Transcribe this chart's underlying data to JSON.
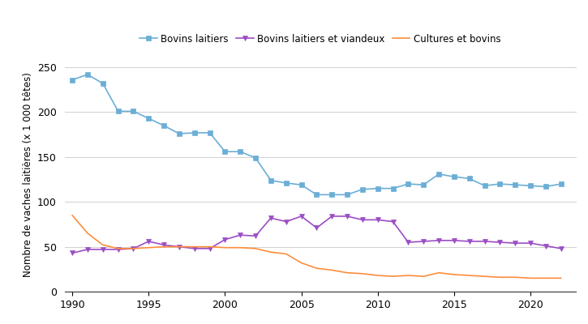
{
  "ylabel": "Nombre de vaches laitières (x 1 000 têtes)",
  "ylim": [
    0,
    260
  ],
  "yticks": [
    0,
    50,
    100,
    150,
    200,
    250
  ],
  "background_color": "#ffffff",
  "grid_color": "#d0d0d0",
  "series": [
    {
      "label": "Bovins laitiers",
      "color": "#6baed6",
      "marker": "s",
      "years": [
        1990,
        1991,
        1992,
        1993,
        1994,
        1995,
        1996,
        1997,
        1998,
        1999,
        2000,
        2001,
        2002,
        2003,
        2004,
        2005,
        2006,
        2007,
        2008,
        2009,
        2010,
        2011,
        2012,
        2013,
        2014,
        2015,
        2016,
        2017,
        2018,
        2019,
        2020,
        2021,
        2022
      ],
      "values": [
        236,
        242,
        232,
        201,
        201,
        193,
        185,
        176,
        177,
        177,
        156,
        156,
        149,
        124,
        121,
        119,
        108,
        108,
        108,
        114,
        115,
        115,
        120,
        119,
        131,
        128,
        126,
        118,
        120,
        119,
        118,
        117,
        120
      ]
    },
    {
      "label": "Bovins laitiers et viandeux",
      "color": "#9c4dc4",
      "marker": "v",
      "years": [
        1990,
        1991,
        1992,
        1993,
        1994,
        1995,
        1996,
        1997,
        1998,
        1999,
        2000,
        2001,
        2002,
        2003,
        2004,
        2005,
        2006,
        2007,
        2008,
        2009,
        2010,
        2011,
        2012,
        2013,
        2014,
        2015,
        2016,
        2017,
        2018,
        2019,
        2020,
        2021,
        2022
      ],
      "values": [
        43,
        47,
        47,
        47,
        48,
        56,
        52,
        50,
        48,
        48,
        58,
        63,
        62,
        82,
        78,
        84,
        71,
        84,
        84,
        80,
        80,
        78,
        55,
        56,
        57,
        57,
        56,
        56,
        55,
        54,
        54,
        51,
        48
      ]
    },
    {
      "label": "Cultures et bovins",
      "color": "#fd8d3c",
      "marker": null,
      "years": [
        1990,
        1991,
        1992,
        1993,
        1994,
        1995,
        1996,
        1997,
        1998,
        1999,
        2000,
        2001,
        2002,
        2003,
        2004,
        2005,
        2006,
        2007,
        2008,
        2009,
        2010,
        2011,
        2012,
        2013,
        2014,
        2015,
        2016,
        2017,
        2018,
        2019,
        2020,
        2021,
        2022
      ],
      "values": [
        85,
        65,
        52,
        48,
        48,
        49,
        50,
        50,
        50,
        50,
        49,
        49,
        48,
        44,
        42,
        32,
        26,
        24,
        21,
        20,
        18,
        17,
        18,
        17,
        21,
        19,
        18,
        17,
        16,
        16,
        15,
        15,
        15
      ]
    }
  ],
  "xticks": [
    1990,
    1995,
    2000,
    2005,
    2010,
    2015,
    2020
  ],
  "xlim": [
    1989.5,
    2023.0
  ],
  "legend_fontsize": 8.5,
  "ylabel_fontsize": 8.5,
  "tick_fontsize": 9
}
